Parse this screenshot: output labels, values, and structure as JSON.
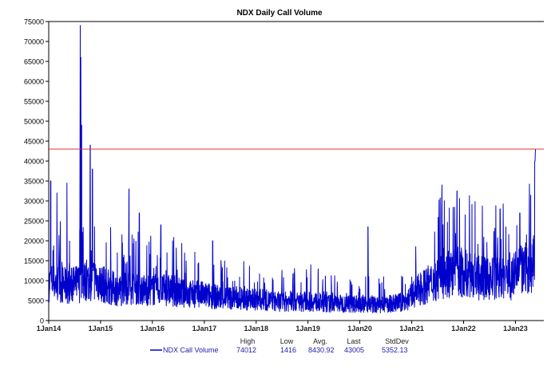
{
  "chart_data": {
    "type": "line",
    "title": "NDX Daily Call Volume",
    "xlabel": "",
    "ylabel": "",
    "ylim": [
      0,
      75000
    ],
    "xlim": [
      "2014-01-01",
      "2023-07-20"
    ],
    "yticks": [
      0,
      5000,
      10000,
      15000,
      20000,
      25000,
      30000,
      35000,
      40000,
      45000,
      50000,
      55000,
      60000,
      65000,
      70000,
      75000
    ],
    "xticks": [
      {
        "date": "2014-01-01",
        "label": "1Jan14"
      },
      {
        "date": "2015-01-01",
        "label": "1Jan15"
      },
      {
        "date": "2016-01-01",
        "label": "1Jan16"
      },
      {
        "date": "2017-01-01",
        "label": "1Jan17"
      },
      {
        "date": "2018-01-01",
        "label": "1Jan18"
      },
      {
        "date": "2019-01-01",
        "label": "1Jan19"
      },
      {
        "date": "2020-01-01",
        "label": "1Jan20"
      },
      {
        "date": "2021-01-01",
        "label": "1Jan21"
      },
      {
        "date": "2022-01-01",
        "label": "1Jan22"
      },
      {
        "date": "2023-01-01",
        "label": "1Jan23"
      }
    ],
    "series": [
      {
        "name": "NDX Call Volume",
        "color": "#0000cc",
        "quarterly_baseline_start": "2014-01-01",
        "quarterly_baseline": [
          10000,
          9000,
          10000,
          11000,
          9000,
          8000,
          9000,
          8000,
          8000,
          8000,
          7000,
          7000,
          6500,
          6000,
          6000,
          5500,
          5500,
          5000,
          5000,
          5000,
          5000,
          4500,
          4500,
          4500,
          4500,
          4000,
          4500,
          5000,
          8000,
          10000,
          12000,
          13000,
          12000,
          11000,
          11000,
          11000,
          13000,
          15000
        ],
        "spikes": [
          [
            "2014-01-15",
            35000
          ],
          [
            "2014-03-01",
            32000
          ],
          [
            "2014-05-10",
            34500
          ],
          [
            "2014-08-10",
            74012
          ],
          [
            "2014-08-14",
            66000
          ],
          [
            "2014-08-20",
            49000
          ],
          [
            "2014-10-20",
            44000
          ],
          [
            "2014-11-05",
            38000
          ],
          [
            "2015-07-20",
            33000
          ],
          [
            "2015-10-01",
            27000
          ],
          [
            "2016-03-01",
            24000
          ],
          [
            "2017-03-01",
            20000
          ],
          [
            "2019-01-20",
            14000
          ],
          [
            "2020-02-28",
            23500
          ],
          [
            "2021-08-01",
            34000
          ],
          [
            "2021-11-15",
            32500
          ],
          [
            "2022-09-15",
            28000
          ],
          [
            "2023-02-01",
            27000
          ],
          [
            "2023-05-18",
            40000
          ],
          [
            "2023-05-22",
            43005
          ]
        ]
      }
    ],
    "reference_line": {
      "value": 43005,
      "color": "#e03030"
    },
    "legend": {
      "placement": "bottom",
      "series_label": "NDX Call Volume",
      "headers": [
        "High",
        "Low",
        "Avg.",
        "Last",
        "StdDev"
      ],
      "values": [
        "74012",
        "1416",
        "8430.92",
        "43005",
        "5352.13"
      ]
    }
  }
}
